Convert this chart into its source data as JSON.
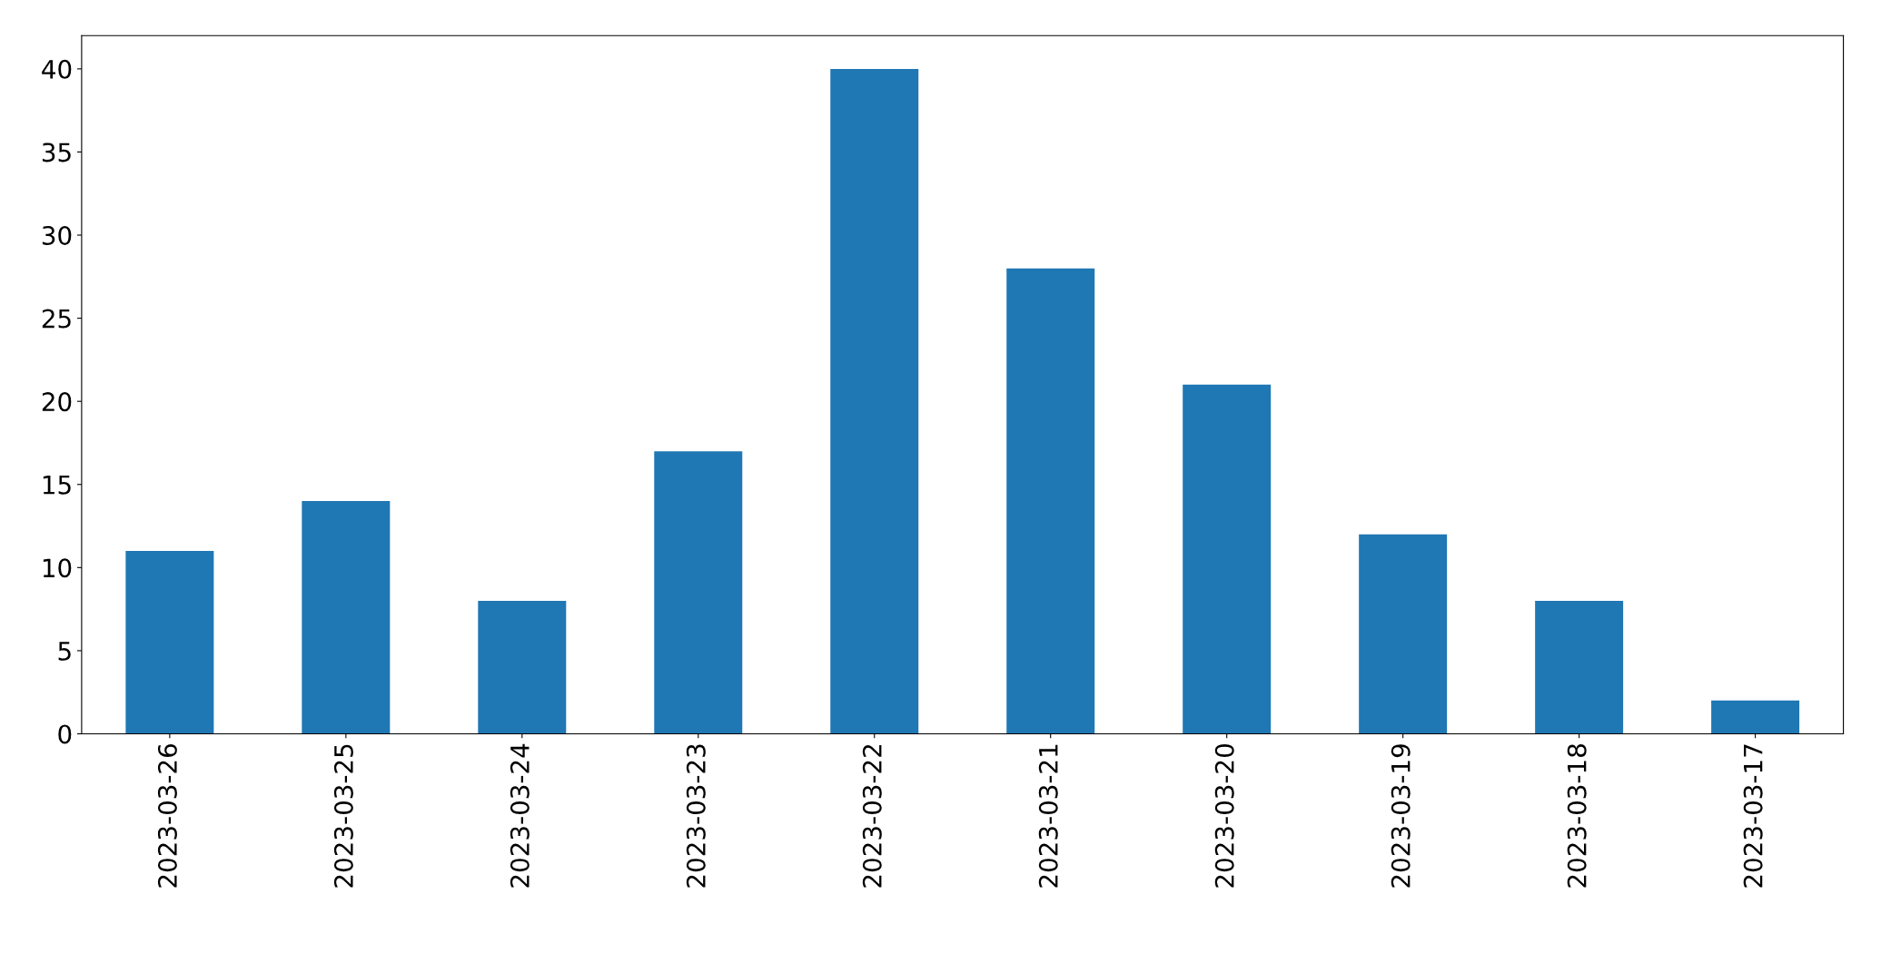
{
  "chart_data": {
    "type": "bar",
    "categories": [
      "2023-03-26",
      "2023-03-25",
      "2023-03-24",
      "2023-03-23",
      "2023-03-22",
      "2023-03-21",
      "2023-03-20",
      "2023-03-19",
      "2023-03-18",
      "2023-03-17"
    ],
    "values": [
      11,
      14,
      8,
      17,
      40,
      28,
      21,
      12,
      8,
      2
    ],
    "color": "#1f77b4",
    "ylim": [
      0,
      42
    ],
    "yticks": [
      0,
      5,
      10,
      15,
      20,
      25,
      30,
      35,
      40
    ],
    "grid": false,
    "legend": false
  }
}
